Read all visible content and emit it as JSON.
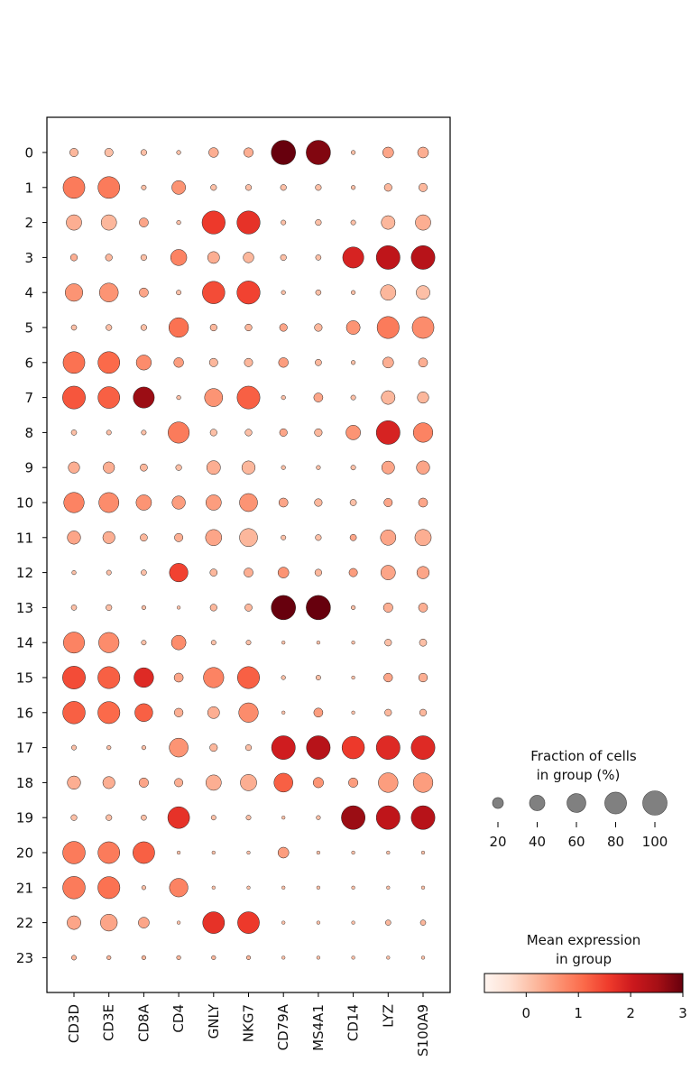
{
  "chart_data": {
    "type": "dotplot",
    "genes": [
      "CD3D",
      "CD3E",
      "CD8A",
      "CD4",
      "GNLY",
      "NKG7",
      "CD79A",
      "MS4A1",
      "CD14",
      "LYZ",
      "S100A9"
    ],
    "groups": [
      "0",
      "1",
      "2",
      "3",
      "4",
      "5",
      "6",
      "7",
      "8",
      "9",
      "10",
      "11",
      "12",
      "13",
      "14",
      "15",
      "16",
      "17",
      "18",
      "19",
      "20",
      "21",
      "22",
      "23"
    ],
    "fraction": [
      [
        12,
        12,
        6,
        3,
        16,
        15,
        100,
        100,
        3,
        20,
        20
      ],
      [
        80,
        80,
        4,
        32,
        6,
        6,
        6,
        6,
        3,
        10,
        12
      ],
      [
        40,
        40,
        14,
        3,
        90,
        90,
        4,
        6,
        4,
        32,
        40
      ],
      [
        8,
        8,
        6,
        44,
        24,
        19,
        6,
        5,
        75,
        95,
        95
      ],
      [
        52,
        60,
        14,
        4,
        85,
        90,
        3,
        5,
        3,
        40,
        32
      ],
      [
        5,
        6,
        6,
        65,
        8,
        8,
        10,
        10,
        32,
        82,
        80
      ],
      [
        80,
        80,
        38,
        16,
        12,
        12,
        16,
        7,
        3,
        20,
        14
      ],
      [
        88,
        80,
        75,
        3,
        55,
        88,
        3,
        14,
        4,
        32,
        22
      ],
      [
        5,
        4,
        4,
        76,
        8,
        8,
        10,
        10,
        36,
        95,
        64
      ],
      [
        22,
        22,
        9,
        6,
        32,
        30,
        3,
        3,
        4,
        28,
        30
      ],
      [
        70,
        68,
        40,
        30,
        40,
        55,
        14,
        10,
        7,
        12,
        14
      ],
      [
        30,
        25,
        9,
        12,
        44,
        55,
        4,
        6,
        7,
        40,
        45
      ],
      [
        3,
        4,
        5,
        58,
        9,
        14,
        20,
        8,
        12,
        36,
        26
      ],
      [
        5,
        6,
        3,
        2,
        8,
        9,
        100,
        100,
        3,
        15,
        14
      ],
      [
        75,
        70,
        4,
        36,
        4,
        4,
        2,
        2,
        2,
        8,
        9
      ],
      [
        88,
        82,
        65,
        14,
        70,
        82,
        3,
        4,
        2,
        13,
        13
      ],
      [
        85,
        82,
        54,
        13,
        24,
        64,
        2,
        14,
        2,
        8,
        8
      ],
      [
        4,
        3,
        3,
        60,
        10,
        6,
        95,
        95,
        85,
        95,
        95
      ],
      [
        30,
        25,
        15,
        12,
        40,
        45,
        60,
        18,
        15,
        65,
        65
      ],
      [
        6,
        6,
        5,
        80,
        4,
        4,
        2,
        3,
        95,
        95,
        95
      ],
      [
        85,
        80,
        80,
        2,
        2,
        2,
        20,
        2,
        2,
        2,
        2
      ],
      [
        85,
        82,
        3,
        58,
        2,
        2,
        2,
        2,
        2,
        2,
        2
      ],
      [
        32,
        48,
        20,
        2,
        80,
        80,
        2,
        2,
        2,
        5,
        5
      ],
      [
        4,
        3,
        3,
        3,
        3,
        3,
        2,
        2,
        2,
        2,
        2
      ]
    ],
    "expression": [
      [
        0.2,
        0.1,
        0.1,
        0.1,
        0.3,
        0.3,
        3.0,
        2.8,
        0.1,
        0.4,
        0.3
      ],
      [
        0.9,
        0.9,
        0.1,
        0.6,
        0.1,
        0.1,
        0.1,
        0.1,
        0.1,
        0.2,
        0.2
      ],
      [
        0.3,
        0.2,
        0.4,
        0.1,
        1.6,
        1.7,
        0.1,
        0.1,
        0.1,
        0.2,
        0.3
      ],
      [
        0.3,
        0.2,
        0.1,
        0.8,
        0.3,
        0.2,
        0.1,
        0.1,
        1.9,
        2.2,
        2.3
      ],
      [
        0.6,
        0.6,
        0.4,
        0.1,
        1.4,
        1.5,
        0.1,
        0.1,
        0.1,
        0.2,
        0.1
      ],
      [
        0.1,
        0.1,
        0.1,
        1.0,
        0.2,
        0.2,
        0.4,
        0.2,
        0.6,
        0.9,
        0.7
      ],
      [
        1.0,
        1.1,
        0.7,
        0.5,
        0.2,
        0.2,
        0.5,
        0.2,
        0.1,
        0.3,
        0.3
      ],
      [
        1.3,
        1.2,
        2.6,
        0.1,
        0.6,
        1.2,
        0.1,
        0.4,
        0.1,
        0.2,
        0.2
      ],
      [
        0.1,
        0.1,
        0.1,
        0.9,
        0.1,
        0.1,
        0.4,
        0.2,
        0.6,
        1.9,
        0.8
      ],
      [
        0.3,
        0.3,
        0.2,
        0.1,
        0.3,
        0.2,
        0.1,
        0.1,
        0.1,
        0.4,
        0.4
      ],
      [
        0.8,
        0.7,
        0.6,
        0.5,
        0.5,
        0.6,
        0.4,
        0.2,
        0.1,
        0.4,
        0.4
      ],
      [
        0.4,
        0.3,
        0.2,
        0.3,
        0.4,
        0.2,
        0.1,
        0.1,
        0.4,
        0.4,
        0.3
      ],
      [
        0.1,
        0.1,
        0.1,
        1.5,
        0.2,
        0.3,
        0.6,
        0.2,
        0.5,
        0.4,
        0.4
      ],
      [
        0.1,
        0.1,
        0.1,
        0.1,
        0.2,
        0.2,
        3.0,
        3.0,
        0.1,
        0.3,
        0.3
      ],
      [
        0.8,
        0.7,
        0.1,
        0.7,
        0.1,
        0.1,
        0.1,
        0.1,
        0.1,
        0.1,
        0.1
      ],
      [
        1.4,
        1.2,
        1.8,
        0.4,
        0.8,
        1.2,
        0.1,
        0.1,
        0.1,
        0.4,
        0.3
      ],
      [
        1.2,
        1.1,
        1.2,
        0.3,
        0.3,
        0.7,
        0.1,
        0.5,
        0.1,
        0.2,
        0.2
      ],
      [
        0.1,
        0.1,
        0.1,
        0.6,
        0.2,
        0.1,
        2.0,
        2.3,
        1.6,
        1.8,
        1.8
      ],
      [
        0.3,
        0.3,
        0.4,
        0.3,
        0.3,
        0.3,
        1.2,
        0.6,
        0.5,
        0.5,
        0.5
      ],
      [
        0.1,
        0.1,
        0.1,
        1.7,
        0.1,
        0.1,
        0.1,
        0.1,
        2.6,
        2.2,
        2.3
      ],
      [
        0.9,
        0.9,
        1.2,
        0.1,
        0.1,
        0.1,
        0.5,
        0.1,
        0.1,
        0.1,
        0.1
      ],
      [
        0.9,
        1.0,
        0.1,
        0.8,
        0.1,
        0.1,
        0.1,
        0.1,
        0.1,
        0.1,
        0.1
      ],
      [
        0.4,
        0.4,
        0.4,
        0.1,
        1.7,
        1.6,
        0.1,
        0.1,
        0.1,
        0.2,
        0.2
      ],
      [
        0.2,
        0.2,
        0.2,
        0.2,
        0.2,
        0.2,
        0.1,
        0.1,
        0.1,
        0.1,
        0.1
      ]
    ],
    "size_legend": {
      "title_line1": "Fraction of cells",
      "title_line2": "in group (%)",
      "values": [
        20,
        40,
        60,
        80,
        100
      ],
      "labels": [
        "20",
        "40",
        "60",
        "80",
        "100"
      ]
    },
    "color_legend": {
      "title_line1": "Mean expression",
      "title_line2": "in group",
      "range": [
        -0.8,
        3.0
      ],
      "ticks": [
        0,
        1,
        2,
        3
      ],
      "tick_labels": [
        "0",
        "1",
        "2",
        "3"
      ],
      "colormap": "Reds"
    },
    "colors": {
      "low": "#fff5f0",
      "high": "#67000d",
      "dot_edge": "#222222"
    }
  }
}
